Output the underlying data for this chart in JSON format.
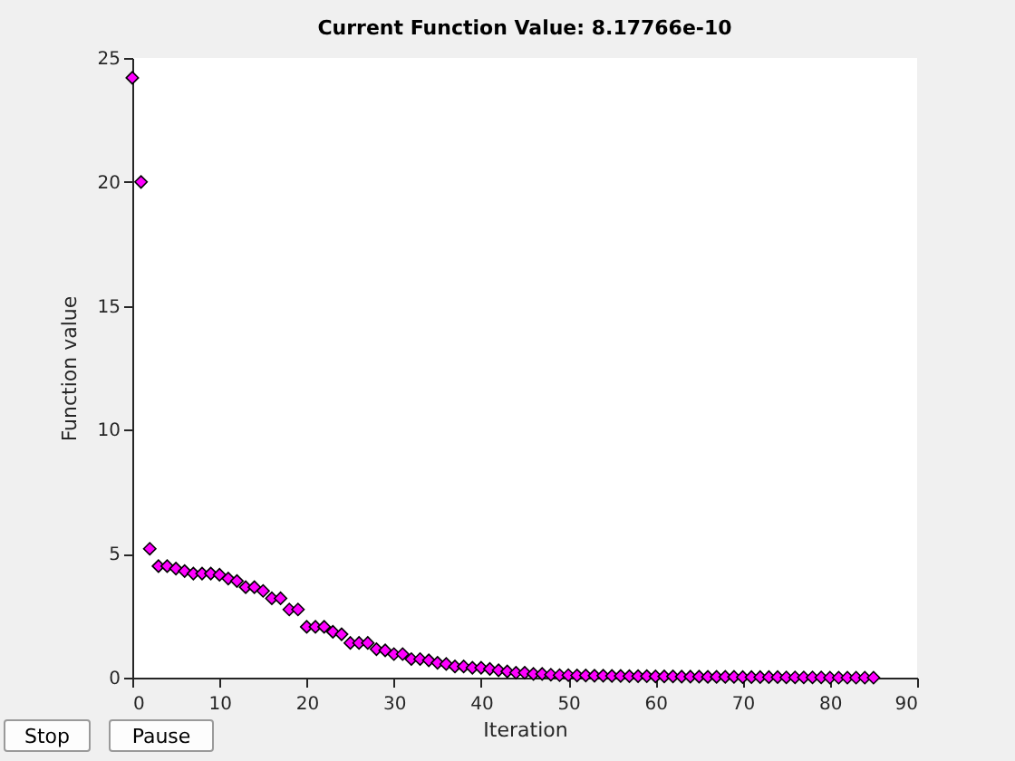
{
  "chart_data": {
    "type": "scatter",
    "title": "Current Function Value: 8.17766e-10",
    "xlabel": "Iteration",
    "ylabel": "Function value",
    "x": [
      0,
      1,
      2,
      3,
      4,
      5,
      6,
      7,
      8,
      9,
      10,
      11,
      12,
      13,
      14,
      15,
      16,
      17,
      18,
      19,
      20,
      21,
      22,
      23,
      24,
      25,
      26,
      27,
      28,
      29,
      30,
      31,
      32,
      33,
      34,
      35,
      36,
      37,
      38,
      39,
      40,
      41,
      42,
      43,
      44,
      45,
      46,
      47,
      48,
      49,
      50,
      51,
      52,
      53,
      54,
      55,
      56,
      57,
      58,
      59,
      60,
      61,
      62,
      63,
      64,
      65,
      66,
      67,
      68,
      69,
      70,
      71,
      72,
      73,
      74,
      75,
      76,
      77,
      78,
      79,
      80,
      81,
      82,
      83,
      84,
      85
    ],
    "series": [
      {
        "color": "#ff00ff",
        "values": [
          24.2,
          20.0,
          5.2,
          4.5,
          4.5,
          4.4,
          4.3,
          4.2,
          4.2,
          4.2,
          4.15,
          4.0,
          3.9,
          3.65,
          3.65,
          3.5,
          3.2,
          3.2,
          2.75,
          2.75,
          2.05,
          2.05,
          2.05,
          1.85,
          1.75,
          1.4,
          1.4,
          1.4,
          1.15,
          1.1,
          0.95,
          0.95,
          0.75,
          0.75,
          0.7,
          0.6,
          0.55,
          0.45,
          0.45,
          0.4,
          0.4,
          0.35,
          0.3,
          0.25,
          0.2,
          0.2,
          0.15,
          0.15,
          0.12,
          0.1,
          0.1,
          0.09,
          0.09,
          0.08,
          0.08,
          0.07,
          0.07,
          0.06,
          0.06,
          0.06,
          0.05,
          0.05,
          0.05,
          0.04,
          0.04,
          0.04,
          0.03,
          0.03,
          0.03,
          0.03,
          0.02,
          0.02,
          0.02,
          0.02,
          0.02,
          0.01,
          0.01,
          0.01,
          0.01,
          0.01,
          0,
          0,
          0,
          0,
          0,
          0
        ]
      }
    ],
    "xlim": [
      0,
      90
    ],
    "xticks": [
      0,
      10,
      20,
      30,
      40,
      50,
      60,
      70,
      80,
      90
    ],
    "ylim": [
      0,
      25
    ],
    "yticks": [
      0,
      5,
      10,
      15,
      20,
      25
    ],
    "marker": "diamond",
    "annotations": [
      "Stop",
      "Pause"
    ]
  }
}
